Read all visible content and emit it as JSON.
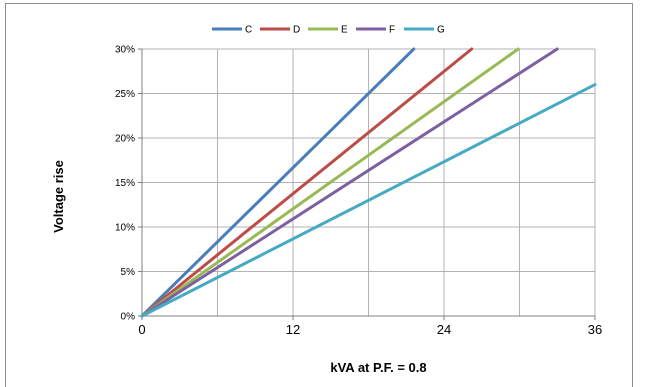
{
  "chart_data": {
    "type": "line",
    "title": "",
    "xlabel": "kVA at P.F. = 0.8",
    "ylabel": "Voltage rise",
    "xlim": [
      0,
      36
    ],
    "ylim": [
      0,
      30
    ],
    "x_ticks": [
      "0",
      "12",
      "24",
      "36"
    ],
    "y_ticks": [
      "0%",
      "5%",
      "10%",
      "15%",
      "20%",
      "25%",
      "30%"
    ],
    "x_grid_step": 6,
    "y_grid_step": 5,
    "grid": true,
    "legend_position": "top",
    "series": [
      {
        "name": "C",
        "color": "#4a7ebb",
        "x": [
          0,
          21.6
        ],
        "y": [
          0,
          30
        ]
      },
      {
        "name": "D",
        "color": "#be4b48",
        "x": [
          0,
          26.2
        ],
        "y": [
          0,
          30
        ]
      },
      {
        "name": "E",
        "color": "#98b954",
        "x": [
          0,
          29.9
        ],
        "y": [
          0,
          30
        ]
      },
      {
        "name": "F",
        "color": "#7d60a0",
        "x": [
          0,
          33.0
        ],
        "y": [
          0,
          30
        ]
      },
      {
        "name": "G",
        "color": "#46aac5",
        "x": [
          0,
          36.0
        ],
        "y": [
          0,
          26
        ]
      }
    ]
  }
}
